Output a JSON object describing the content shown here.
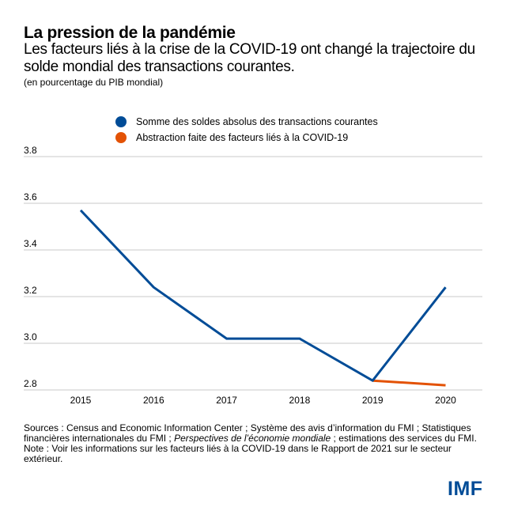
{
  "header": {
    "title": "La pression de la pandémie",
    "subtitle": "Les facteurs liés à la crise de la COVID-19 ont changé la trajectoire du solde mondial des transactions courantes.",
    "units": "(en pourcentage du PIB mondial)"
  },
  "colors": {
    "blue": "#004C97",
    "orange": "#E35205",
    "grid": "#C8C8C8",
    "logo": "#004C97"
  },
  "chart_data": {
    "type": "line",
    "title": "La pression de la pandémie",
    "xlabel": "",
    "ylabel": "(en pourcentage du PIB mondial)",
    "x": [
      "2015",
      "2016",
      "2017",
      "2018",
      "2019",
      "2020"
    ],
    "ylim": [
      2.8,
      3.8
    ],
    "yticks": [
      "2.8",
      "3.0",
      "3.2",
      "3.4",
      "3.6",
      "3.8"
    ],
    "grid": true,
    "legend_position": "top-center",
    "series": [
      {
        "name": "Somme des soldes absolus des transactions courantes",
        "color": "#004C97",
        "values": [
          3.57,
          3.24,
          3.02,
          3.02,
          2.84,
          3.24
        ]
      },
      {
        "name": "Abstraction faite des facteurs liés à la COVID-19",
        "color": "#E35205",
        "values": [
          null,
          null,
          null,
          null,
          2.84,
          2.82
        ]
      }
    ]
  },
  "footer": {
    "sources_prefix": "Sources : Census and Economic Information Center ; Système des avis d’information du FMI ; Statistiques financières internationales du FMI ; ",
    "sources_italic": "Perspectives de l’économie mondiale",
    "sources_suffix": " ; estimations des services du FMI.",
    "note": "Note : Voir les informations sur les facteurs liés à la COVID-19 dans le Rapport de 2021 sur le secteur extérieur.",
    "logo": "IMF"
  }
}
